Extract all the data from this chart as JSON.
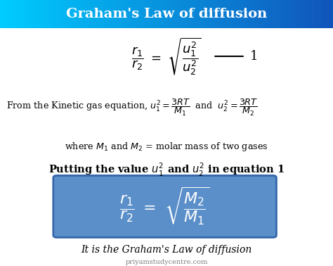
{
  "title": "Graham's Law of diffusion",
  "bg_color": "white",
  "footer": "priyamstudycentre.com",
  "box_color": "#5b8fc9",
  "title_grad_left": "#00ccff",
  "title_grad_right": "#1155bb"
}
